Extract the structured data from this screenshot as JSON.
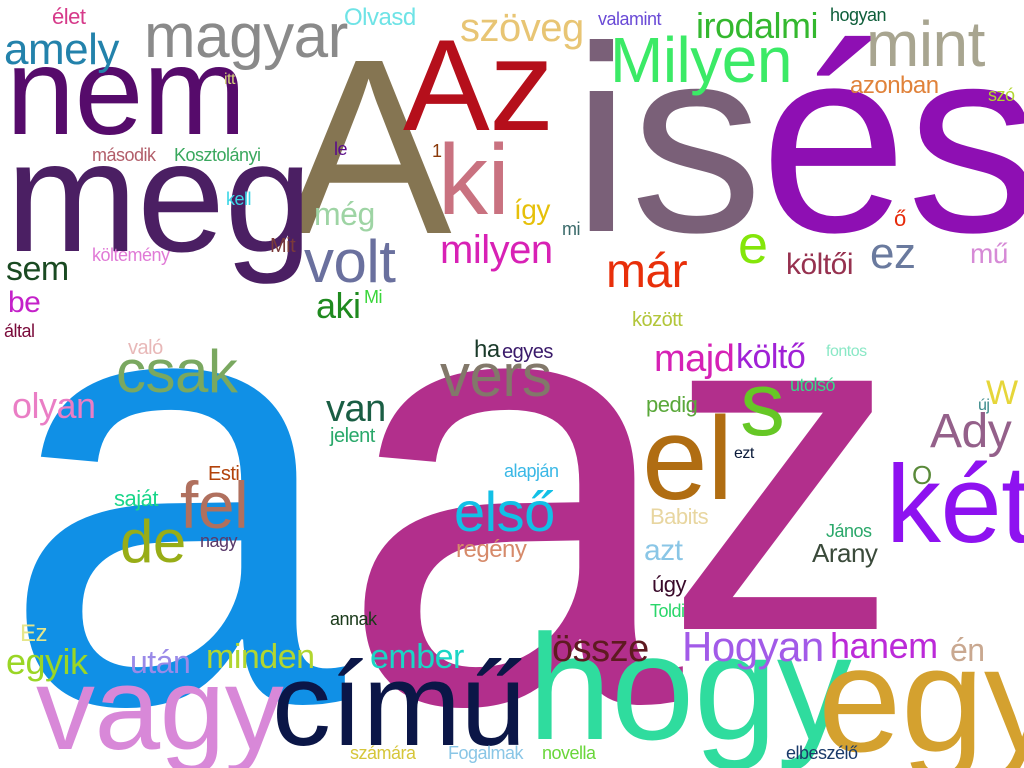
{
  "words": [
    {
      "text": "a",
      "color": "#1090e6"
    },
    {
      "text": "a",
      "color": "#b22f8c"
    },
    {
      "text": "z",
      "color": "#b22f8c"
    },
    {
      "text": "A",
      "color": "#857552"
    },
    {
      "text": "is",
      "color": "#7a6078"
    },
    {
      "text": "és",
      "color": "#8e0fb3"
    },
    {
      "text": "Az",
      "color": "#b50f1b"
    },
    {
      "text": "meg",
      "color": "#4b1f63"
    },
    {
      "text": "nem",
      "color": "#560b6b"
    },
    {
      "text": "hogy",
      "color": "#2fdc9e"
    },
    {
      "text": "egy",
      "color": "#d4a12f"
    },
    {
      "text": "vagy",
      "color": "#d888d8"
    },
    {
      "text": "című",
      "color": "#0b1647"
    },
    {
      "text": "el",
      "color": "#b06d12"
    },
    {
      "text": "két",
      "color": "#8e12f0"
    },
    {
      "text": "ki",
      "color": "#c97280"
    },
    {
      "text": "magyar",
      "color": "#8a8a8a"
    },
    {
      "text": "Milyen",
      "color": "#3bea66"
    },
    {
      "text": "mint",
      "color": "#a8a590"
    },
    {
      "text": "amely",
      "color": "#2382ab"
    },
    {
      "text": "volt",
      "color": "#6a709e"
    },
    {
      "text": "vers",
      "color": "#82786a"
    },
    {
      "text": "s",
      "color": "#66c726"
    },
    {
      "text": "csak",
      "color": "#7aa860"
    },
    {
      "text": "fel",
      "color": "#b0705e"
    },
    {
      "text": "de",
      "color": "#98ad17"
    },
    {
      "text": "első",
      "color": "#12c0e6"
    },
    {
      "text": "Ady",
      "color": "#94608a"
    },
    {
      "text": "szöveg",
      "color": "#e8c574"
    },
    {
      "text": "irodalmi",
      "color": "#34b82f"
    },
    {
      "text": "már",
      "color": "#e82f0a"
    },
    {
      "text": "e",
      "color": "#84e60a"
    },
    {
      "text": "milyen",
      "color": "#d821b5"
    },
    {
      "text": "ez",
      "color": "#6a7a9e"
    },
    {
      "text": "költői",
      "color": "#96314f"
    },
    {
      "text": "sem",
      "color": "#1a4a22"
    },
    {
      "text": "még",
      "color": "#9ed4a4"
    },
    {
      "text": "olyan",
      "color": "#ea7ec5"
    },
    {
      "text": "van",
      "color": "#1a5e44"
    },
    {
      "text": "aki",
      "color": "#1f8a1f"
    },
    {
      "text": "majd",
      "color": "#d621b5"
    },
    {
      "text": "költő",
      "color": "#a021d6"
    },
    {
      "text": "Hogyan",
      "color": "#a25ae8"
    },
    {
      "text": "hanem",
      "color": "#bb2ad8"
    },
    {
      "text": "össze",
      "color": "#5e1a20"
    },
    {
      "text": "ember",
      "color": "#1ad6c6"
    },
    {
      "text": "minden",
      "color": "#b2d630"
    },
    {
      "text": "egyik",
      "color": "#9ad625"
    },
    {
      "text": "után",
      "color": "#9a8ae8"
    },
    {
      "text": "én",
      "color": "#c9a890"
    },
    {
      "text": "Arany",
      "color": "#3a4a3a"
    },
    {
      "text": "azonban",
      "color": "#e0823a"
    },
    {
      "text": "Olvasd",
      "color": "#6ee3e6"
    },
    {
      "text": "élet",
      "color": "#d63a8a"
    },
    {
      "text": "valamint",
      "color": "#6a4ad6"
    },
    {
      "text": "hogyan",
      "color": "#0e5e3a"
    },
    {
      "text": "itt",
      "color": "#d6d67a"
    },
    {
      "text": "szó",
      "color": "#b2d630"
    },
    {
      "text": "második",
      "color": "#b25e6a"
    },
    {
      "text": "Kosztolányi",
      "color": "#3aa85e"
    },
    {
      "text": "le",
      "color": "#5a0a8a"
    },
    {
      "text": "1",
      "color": "#8a3a0a"
    },
    {
      "text": "kell",
      "color": "#3ad6e6"
    },
    {
      "text": "így",
      "color": "#e6c00a"
    },
    {
      "text": "mi",
      "color": "#3a6a6a"
    },
    {
      "text": "ő",
      "color": "#e62a0a"
    },
    {
      "text": "Mit",
      "color": "#7a3a3a"
    },
    {
      "text": "költemény",
      "color": "#e07ad6"
    },
    {
      "text": "mű",
      "color": "#d68ad6"
    },
    {
      "text": "be",
      "color": "#c421c9"
    },
    {
      "text": "Mi",
      "color": "#3ad63a"
    },
    {
      "text": "által",
      "color": "#7a0a3a"
    },
    {
      "text": "között",
      "color": "#b2c63a"
    },
    {
      "text": "való",
      "color": "#e8b8b8"
    },
    {
      "text": "ha",
      "color": "#1a3a2a"
    },
    {
      "text": "egyes",
      "color": "#3a1a6a"
    },
    {
      "text": "fontos",
      "color": "#8ae8c6"
    },
    {
      "text": "utolsó",
      "color": "#3ad68a"
    },
    {
      "text": "pedig",
      "color": "#5aa83a"
    },
    {
      "text": "W",
      "color": "#e6d63a"
    },
    {
      "text": "új",
      "color": "#3a8a8a"
    },
    {
      "text": "jelent",
      "color": "#2aa86a"
    },
    {
      "text": "ezt",
      "color": "#0a1a3a"
    },
    {
      "text": "alapján",
      "color": "#3ab8e6"
    },
    {
      "text": "Esti",
      "color": "#b2420a"
    },
    {
      "text": "saját",
      "color": "#1ad68a"
    },
    {
      "text": "O",
      "color": "#5a8a3a"
    },
    {
      "text": "Babits",
      "color": "#e8d6a0"
    },
    {
      "text": "nagy",
      "color": "#5a3a6a"
    },
    {
      "text": "azt",
      "color": "#8ac6e6"
    },
    {
      "text": "János",
      "color": "#2aa86a"
    },
    {
      "text": "regény",
      "color": "#d68a6a"
    },
    {
      "text": "úgy",
      "color": "#3a0a2a"
    },
    {
      "text": "Toldi",
      "color": "#2ad66a"
    },
    {
      "text": "annak",
      "color": "#1a3a1a"
    },
    {
      "text": "Ez",
      "color": "#e6e68a"
    },
    {
      "text": "számára",
      "color": "#d6c63a"
    },
    {
      "text": "Fogalmak",
      "color": "#8ac6e6"
    },
    {
      "text": "novella",
      "color": "#6ad63a"
    },
    {
      "text": "elbeszélő",
      "color": "#1a3a6a"
    }
  ]
}
